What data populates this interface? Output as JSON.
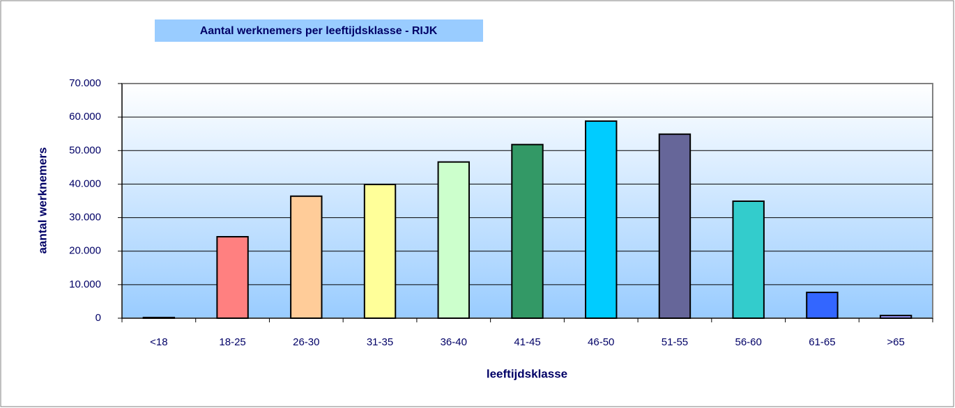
{
  "chart_data": {
    "type": "bar",
    "title": "Aantal werknemers per leeftijdsklasse - RIJK",
    "x_label": "leeftijdsklasse",
    "y_label": "aantal werknemers",
    "categories": [
      "<18",
      "18-25",
      "26-30",
      "31-35",
      "36-40",
      "41-45",
      "46-50",
      "51-55",
      "56-60",
      "61-65",
      ">65"
    ],
    "values": [
      200,
      24300,
      36400,
      39900,
      46600,
      51800,
      58800,
      54900,
      34900,
      7700,
      800
    ],
    "colors": [
      "#9999ff",
      "#ff8080",
      "#ffcc99",
      "#ffff99",
      "#ccffcc",
      "#339966",
      "#00ccff",
      "#666699",
      "#33cccc",
      "#3366ff",
      "#9999ff"
    ],
    "ylim": [
      0,
      70000
    ],
    "yticks": [
      0,
      {
        "value": 10000,
        "label": "10.000"
      },
      {
        "value": 20000,
        "label": "20.000"
      },
      {
        "value": 30000,
        "label": "30.000"
      },
      {
        "value": 40000,
        "label": "40.000"
      },
      {
        "value": 50000,
        "label": "50.000"
      },
      {
        "value": 60000,
        "label": "60.000"
      },
      {
        "value": 70000,
        "label": "70.000"
      }
    ],
    "grid": true
  }
}
